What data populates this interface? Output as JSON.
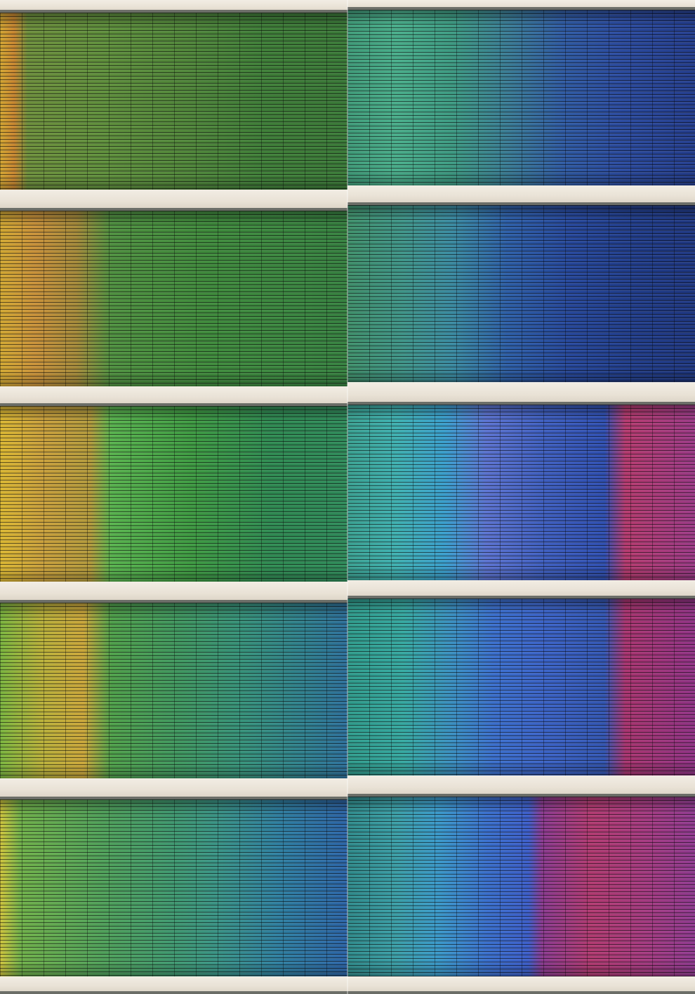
{
  "scene": {
    "subject": "facade-with-colored-louvers",
    "colors": {
      "concrete": "#ece6dc",
      "yellow": "#d9b431",
      "orange": "#c9792c",
      "green": "#3f8f3a",
      "teal": "#2f8f86",
      "blue": "#2e4ea8",
      "navy": "#1f2f78",
      "magenta": "#b43a6e"
    }
  }
}
